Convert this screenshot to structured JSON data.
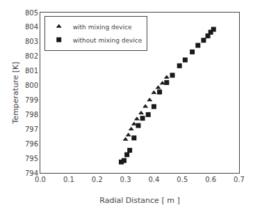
{
  "chart_data": {
    "type": "scatter",
    "xlabel": "Radial Distance [ m ]",
    "ylabel": "Temperature [K]",
    "series": [
      {
        "name": "with mixing device",
        "color": "#1a1a1a",
        "marker": "triangle",
        "x": [
          0.3,
          0.31,
          0.32,
          0.33,
          0.34,
          0.355,
          0.37,
          0.385,
          0.4,
          0.415,
          0.43,
          0.445
        ],
        "values": [
          796.3,
          796.6,
          797.0,
          797.35,
          797.7,
          798.1,
          798.55,
          799.0,
          799.5,
          799.85,
          800.15,
          800.55
        ]
      },
      {
        "name": "without mixing device",
        "color": "#1a1a1a",
        "marker": "square",
        "x": [
          0.285,
          0.295,
          0.305,
          0.315,
          0.33,
          0.345,
          0.36,
          0.38,
          0.4,
          0.42,
          0.445,
          0.465,
          0.49,
          0.51,
          0.535,
          0.555,
          0.575,
          0.59,
          0.6,
          0.61
        ],
        "values": [
          794.75,
          794.85,
          795.25,
          795.55,
          796.4,
          797.25,
          797.75,
          798.0,
          798.55,
          799.55,
          800.2,
          800.7,
          801.35,
          801.75,
          802.3,
          802.75,
          803.1,
          803.4,
          803.65,
          803.85
        ]
      }
    ],
    "xlim": [
      0.0,
      0.7
    ],
    "ylim": [
      794,
      805
    ],
    "xticks": [
      {
        "value": 0,
        "label": "0.0"
      },
      0.1,
      0.2,
      0.3,
      0.4,
      0.5,
      0.6,
      0.7
    ],
    "yticks": [
      794,
      795,
      796,
      797,
      798,
      799,
      800,
      801,
      802,
      803,
      804,
      805
    ],
    "grid": false,
    "legend": "upper left"
  }
}
